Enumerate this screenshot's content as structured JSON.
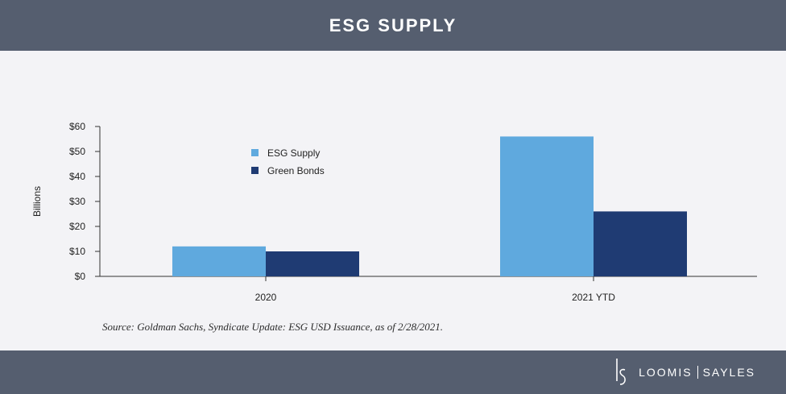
{
  "header": {
    "title": "ESG SUPPLY"
  },
  "chart_data": {
    "type": "bar",
    "categories": [
      "2020",
      "2021 YTD"
    ],
    "series": [
      {
        "name": "ESG Supply",
        "values": [
          12,
          56
        ],
        "color": "#5fa9de"
      },
      {
        "name": "Green Bonds",
        "values": [
          10,
          26
        ],
        "color": "#1f3b73"
      }
    ],
    "ylabel": "Billions",
    "ylim": [
      0,
      60
    ],
    "yticks": [
      "$0",
      "$10",
      "$20",
      "$30",
      "$40",
      "$50",
      "$60"
    ],
    "grid": false,
    "legend": "top-left inside plot"
  },
  "source_note": "Source: Goldman Sachs, Syndicate Update: ESG USD Issuance, as of 2/28/2021.",
  "footer": {
    "brand_left": "LOOMIS",
    "brand_right": "SAYLES",
    "logo_icon": "ls-monogram-icon"
  }
}
